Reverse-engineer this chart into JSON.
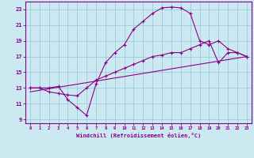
{
  "xlabel": "Windchill (Refroidissement éolien,°C)",
  "bg_color": "#cce8f0",
  "grid_color": "#99cce0",
  "line_color": "#880088",
  "x_ticks": [
    0,
    1,
    2,
    3,
    4,
    5,
    6,
    7,
    8,
    9,
    10,
    11,
    12,
    13,
    14,
    15,
    16,
    17,
    18,
    19,
    20,
    21,
    22,
    23
  ],
  "y_ticks": [
    9,
    11,
    13,
    15,
    17,
    19,
    21,
    23
  ],
  "xlim": [
    -0.5,
    23.5
  ],
  "ylim": [
    8.5,
    24.0
  ],
  "curve1_x": [
    0,
    1,
    2,
    3,
    4,
    5,
    6,
    7,
    8,
    9,
    10,
    11,
    12,
    13,
    14,
    15,
    16,
    17,
    18,
    19,
    20,
    21,
    22,
    23
  ],
  "curve1_y": [
    13.0,
    13.0,
    13.0,
    13.2,
    11.5,
    10.5,
    9.5,
    13.5,
    16.2,
    17.5,
    18.5,
    20.5,
    21.5,
    22.5,
    23.2,
    23.3,
    23.2,
    22.5,
    19.0,
    18.5,
    19.0,
    18.0,
    17.5,
    17.0
  ],
  "curve2_x": [
    0,
    1,
    2,
    3,
    4,
    5,
    6,
    7,
    8,
    9,
    10,
    11,
    12,
    13,
    14,
    15,
    16,
    17,
    18,
    19,
    20,
    21,
    22,
    23
  ],
  "curve2_y": [
    13.0,
    13.0,
    12.5,
    12.3,
    12.1,
    12.0,
    13.0,
    14.0,
    14.5,
    15.0,
    15.5,
    16.0,
    16.5,
    17.0,
    17.2,
    17.5,
    17.5,
    18.0,
    18.5,
    19.0,
    16.2,
    17.5,
    17.5,
    17.0
  ],
  "curve3_x": [
    0,
    23
  ],
  "curve3_y": [
    12.5,
    17.0
  ]
}
